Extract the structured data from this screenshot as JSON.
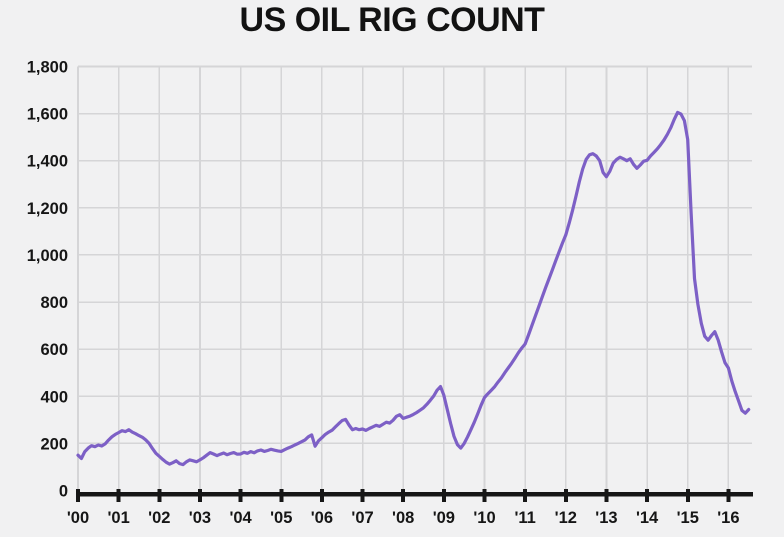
{
  "title": "US OIL RIG COUNT",
  "colors": {
    "background": "#F1F1F2",
    "line": "#7D60C6",
    "grid": "#D5D5D7",
    "axis": "#161616",
    "text": "#121212"
  },
  "chart_data": {
    "type": "line",
    "title": "US OIL RIG COUNT",
    "xlabel": "",
    "ylabel": "",
    "grid": true,
    "legend": "none",
    "ylim": [
      0,
      1800
    ],
    "xlim": [
      2000,
      2016.58
    ],
    "y_ticks": [
      0,
      200,
      400,
      600,
      800,
      1000,
      1200,
      1400,
      1600,
      1800
    ],
    "y_tick_labels": [
      "0",
      "200",
      "400",
      "600",
      "800",
      "1,000",
      "1,200",
      "1,400",
      "1,600",
      "1,800"
    ],
    "x_tick_years": [
      2000,
      2001,
      2002,
      2003,
      2004,
      2005,
      2006,
      2007,
      2008,
      2009,
      2010,
      2011,
      2012,
      2013,
      2014,
      2015,
      2016
    ],
    "x_tick_labels": [
      "'00",
      "'01",
      "'02",
      "'03",
      "'04",
      "'05",
      "'06",
      "'07",
      "'08",
      "'09",
      "'10",
      "'11",
      "'12",
      "'13",
      "'14",
      "'15",
      "'16"
    ],
    "series": [
      {
        "name": "US oil rig count",
        "x_start_year": 2000,
        "x_step_years": 0.0833333,
        "values": [
          150,
          136,
          165,
          180,
          190,
          186,
          193,
          189,
          198,
          214,
          228,
          238,
          246,
          254,
          250,
          258,
          248,
          241,
          233,
          226,
          215,
          200,
          178,
          158,
          145,
          132,
          120,
          112,
          118,
          126,
          114,
          110,
          122,
          130,
          126,
          122,
          130,
          139,
          150,
          161,
          155,
          148,
          154,
          159,
          152,
          157,
          161,
          154,
          155,
          162,
          158,
          165,
          160,
          168,
          172,
          166,
          170,
          175,
          171,
          168,
          166,
          173,
          180,
          186,
          193,
          200,
          207,
          215,
          228,
          236,
          188,
          211,
          224,
          238,
          248,
          256,
          270,
          284,
          297,
          302,
          278,
          258,
          263,
          258,
          261,
          255,
          263,
          270,
          277,
          272,
          281,
          290,
          286,
          298,
          315,
          322,
          306,
          311,
          316,
          323,
          331,
          341,
          351,
          366,
          383,
          401,
          426,
          441,
          405,
          345,
          285,
          230,
          195,
          180,
          200,
          228,
          258,
          290,
          325,
          362,
          395,
          411,
          426,
          441,
          460,
          478,
          500,
          520,
          540,
          562,
          585,
          605,
          622,
          660,
          700,
          740,
          780,
          820,
          860,
          898,
          935,
          974,
          1012,
          1050,
          1085,
          1135,
          1190,
          1250,
          1310,
          1365,
          1405,
          1425,
          1430,
          1420,
          1400,
          1350,
          1332,
          1355,
          1390,
          1405,
          1415,
          1408,
          1400,
          1408,
          1385,
          1368,
          1382,
          1398,
          1402,
          1420,
          1435,
          1450,
          1468,
          1488,
          1512,
          1540,
          1575,
          1605,
          1598,
          1570,
          1490,
          1180,
          900,
          790,
          710,
          655,
          638,
          658,
          674,
          638,
          588,
          542,
          520,
          465,
          420,
          380,
          340,
          328,
          344
        ]
      }
    ]
  }
}
